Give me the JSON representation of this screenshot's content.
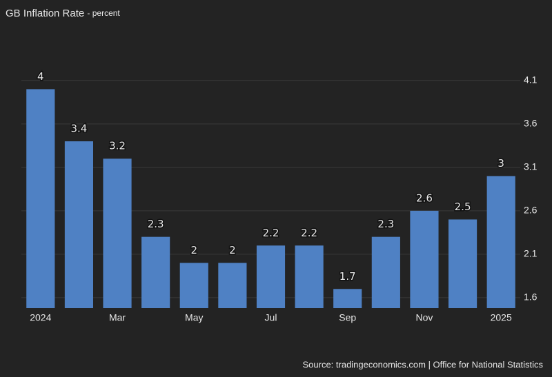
{
  "chart_data": {
    "type": "bar",
    "title": "GB Inflation Rate",
    "subtitle": "- percent",
    "categories": [
      "2024",
      null,
      "Mar",
      null,
      "May",
      null,
      "Jul",
      null,
      "Sep",
      null,
      "Nov",
      null,
      "2025"
    ],
    "values": [
      4,
      3.4,
      3.2,
      2.3,
      2,
      2,
      2.2,
      2.2,
      1.7,
      2.3,
      2.6,
      2.5,
      3
    ],
    "color": "#4f81c4",
    "ylim": [
      1.48,
      4.63
    ],
    "yticks": [
      1.6,
      2.1,
      2.6,
      3.1,
      3.6,
      4.1
    ],
    "y_axis_side": "right",
    "grid": true,
    "source": "Source: tradingeconomics.com | Office for National Statistics"
  }
}
